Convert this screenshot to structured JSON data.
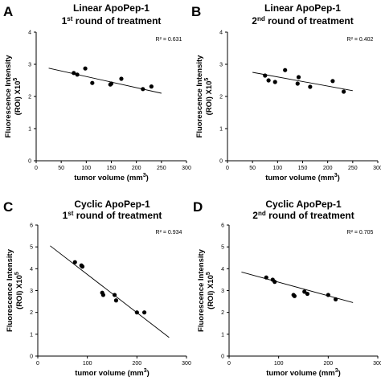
{
  "chart_data": [
    {
      "panel": "A",
      "type": "scatter",
      "title": "Linear ApoPep-1",
      "subtitle": "1st round of treatment",
      "subtitle_parts": [
        "1",
        "st",
        " round of treatment"
      ],
      "xlabel": "tumor volume (mm³)",
      "xlabel_parts": [
        "tumor volume (mm",
        "3",
        ")"
      ],
      "ylabel_line1": "Fluorescence Intensity",
      "ylabel_line2": "(ROI) X10",
      "ylabel_exp": "5",
      "xlim": [
        0,
        300
      ],
      "ylim": [
        0,
        4
      ],
      "xticks": [
        0,
        50,
        100,
        150,
        200,
        250,
        300
      ],
      "yticks": [
        0,
        1,
        2,
        3,
        4
      ],
      "annotation": "R² = 0.631",
      "points": [
        [
          75,
          2.73
        ],
        [
          82,
          2.68
        ],
        [
          98,
          2.87
        ],
        [
          112,
          2.42
        ],
        [
          148,
          2.37
        ],
        [
          150,
          2.4
        ],
        [
          170,
          2.55
        ],
        [
          213,
          2.23
        ],
        [
          230,
          2.31
        ]
      ],
      "trendline": [
        [
          25,
          2.88
        ],
        [
          250,
          2.1
        ]
      ],
      "grid": false,
      "legend": "none"
    },
    {
      "panel": "B",
      "type": "scatter",
      "title": "Linear ApoPep-1",
      "subtitle": "2nd round of treatment",
      "subtitle_parts": [
        "2",
        "nd",
        " round of treatment"
      ],
      "xlabel": "tumor volume (mm³)",
      "xlabel_parts": [
        "tumor volume (mm",
        "3",
        ")"
      ],
      "ylabel_line1": "Fluorescence Intensity",
      "ylabel_line2": "(ROI) X10",
      "ylabel_exp": "5",
      "xlim": [
        0,
        300
      ],
      "ylim": [
        0,
        4
      ],
      "xticks": [
        0,
        50,
        100,
        150,
        200,
        250,
        300
      ],
      "yticks": [
        0,
        1,
        2,
        3,
        4
      ],
      "annotation": "R² = 0.402",
      "points": [
        [
          75,
          2.65
        ],
        [
          82,
          2.5
        ],
        [
          95,
          2.45
        ],
        [
          115,
          2.82
        ],
        [
          140,
          2.4
        ],
        [
          142,
          2.6
        ],
        [
          165,
          2.3
        ],
        [
          210,
          2.48
        ],
        [
          232,
          2.15
        ]
      ],
      "trendline": [
        [
          50,
          2.75
        ],
        [
          250,
          2.18
        ]
      ],
      "grid": false,
      "legend": "none"
    },
    {
      "panel": "C",
      "type": "scatter",
      "title": "Cyclic  ApoPep-1",
      "subtitle": "1st round of treatment",
      "subtitle_parts": [
        "1",
        "st",
        " round of treatment"
      ],
      "xlabel": "tumor volume (mm³)",
      "xlabel_parts": [
        "tumor volume (mm",
        "3",
        ")"
      ],
      "ylabel_line1": "Fluorescence Intensity",
      "ylabel_line2": "(ROI) X10",
      "ylabel_exp": "5",
      "xlim": [
        0,
        300
      ],
      "ylim": [
        0,
        6
      ],
      "xticks": [
        0,
        100,
        200,
        300
      ],
      "yticks": [
        0,
        1,
        2,
        3,
        4,
        5,
        6
      ],
      "annotation": "R² = 0.934",
      "points": [
        [
          75,
          4.3
        ],
        [
          88,
          4.15
        ],
        [
          90,
          4.1
        ],
        [
          130,
          2.9
        ],
        [
          132,
          2.8
        ],
        [
          155,
          2.8
        ],
        [
          158,
          2.55
        ],
        [
          200,
          2.0
        ],
        [
          215,
          2.0
        ]
      ],
      "trendline": [
        [
          25,
          5.05
        ],
        [
          265,
          0.85
        ]
      ],
      "grid": false,
      "legend": "none"
    },
    {
      "panel": "D",
      "type": "scatter",
      "title": "Cyclic  ApoPep-1",
      "subtitle": "2nd round of treatment",
      "subtitle_parts": [
        "2",
        "nd",
        " round of treatment"
      ],
      "xlabel": "tumor volume (mm³)",
      "xlabel_parts": [
        "tumor volume (mm",
        "3",
        ")"
      ],
      "ylabel_line1": "Fluorescence Intensity",
      "ylabel_line2": "(ROI) X10",
      "ylabel_exp": "5",
      "xlim": [
        0,
        300
      ],
      "ylim": [
        0,
        6
      ],
      "xticks": [
        0,
        100,
        200,
        300
      ],
      "yticks": [
        0,
        1,
        2,
        3,
        4,
        5,
        6
      ],
      "annotation": "R² = 0.705",
      "points": [
        [
          75,
          3.6
        ],
        [
          88,
          3.5
        ],
        [
          92,
          3.4
        ],
        [
          130,
          2.8
        ],
        [
          132,
          2.75
        ],
        [
          152,
          2.95
        ],
        [
          158,
          2.85
        ],
        [
          200,
          2.8
        ],
        [
          215,
          2.6
        ]
      ],
      "trendline": [
        [
          25,
          3.85
        ],
        [
          250,
          2.45
        ]
      ],
      "grid": false,
      "legend": "none"
    }
  ]
}
